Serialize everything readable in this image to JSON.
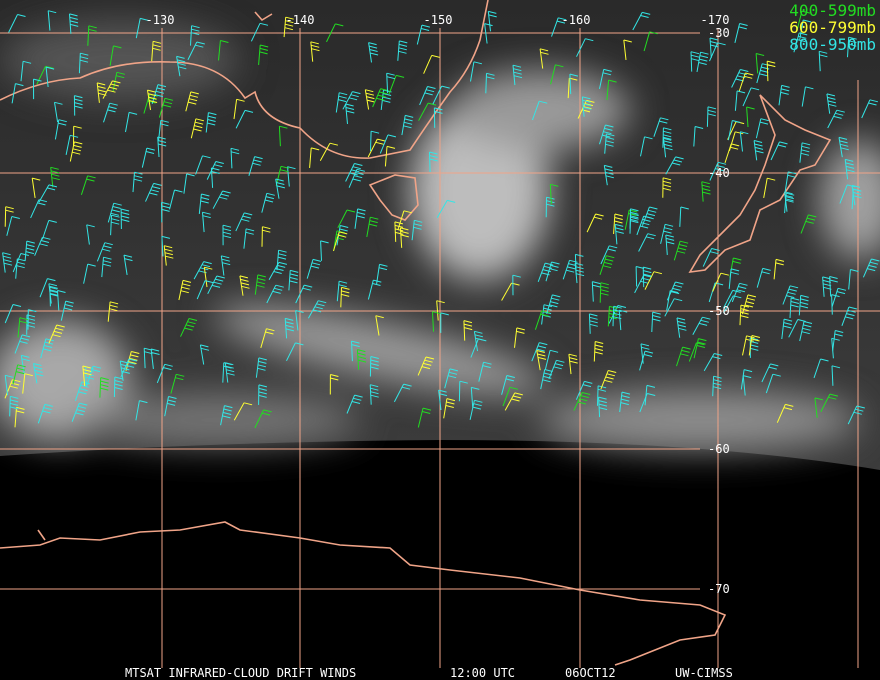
{
  "map": {
    "longitude_labels": [
      "-130",
      "-140",
      "-150",
      "-160",
      "-170"
    ],
    "latitude_labels": [
      "-30",
      "-40",
      "-50",
      "-60",
      "-70"
    ],
    "legend": [
      {
        "label": "400-599mb",
        "color": "#22dd22"
      },
      {
        "label": "600-799mb",
        "color": "#ffff33"
      },
      {
        "label": "800-950mb",
        "color": "#33e6e6"
      }
    ],
    "footer": {
      "product": "MTSAT INFRARED-CLOUD DRIFT WINDS",
      "time": "12:00 UTC",
      "date": "06OCT12",
      "source": "UW-CIMSS"
    }
  }
}
